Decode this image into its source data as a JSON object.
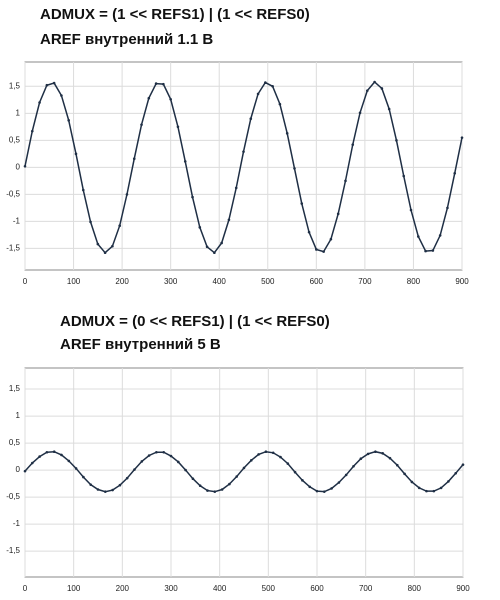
{
  "chart_data": [
    {
      "type": "line",
      "title": "ADMUX =  (1 << REFS1) | (1 << REFS0)",
      "subtitle": "AREF внутренний 1.1 В",
      "x": [
        0,
        15,
        30,
        45,
        60,
        75,
        90,
        105,
        120,
        135,
        150,
        165,
        180,
        195,
        210,
        225,
        240,
        255,
        270,
        285,
        300,
        315,
        330,
        345,
        360,
        375,
        390,
        405,
        420,
        435,
        450,
        465,
        480,
        495,
        510,
        525,
        540,
        555,
        570,
        585,
        600,
        615,
        630,
        645,
        660,
        675,
        690,
        705,
        720,
        735,
        750,
        765,
        780,
        795,
        810,
        825,
        840,
        855,
        870,
        885,
        900
      ],
      "series": [
        {
          "color": "#1f2f45",
          "values": [
            0.02,
            0.67,
            1.2,
            1.52,
            1.56,
            1.33,
            0.87,
            0.25,
            -0.42,
            -1.01,
            -1.42,
            -1.58,
            -1.46,
            -1.08,
            -0.5,
            0.16,
            0.79,
            1.28,
            1.55,
            1.54,
            1.26,
            0.75,
            0.11,
            -0.55,
            -1.11,
            -1.47,
            -1.58,
            -1.4,
            -0.97,
            -0.38,
            0.29,
            0.9,
            1.36,
            1.57,
            1.5,
            1.17,
            0.63,
            -0.02,
            -0.67,
            -1.2,
            -1.52,
            -1.56,
            -1.33,
            -0.86,
            -0.25,
            0.42,
            1.01,
            1.42,
            1.58,
            1.46,
            1.08,
            0.5,
            -0.16,
            -0.79,
            -1.28,
            -1.55,
            -1.54,
            -1.26,
            -0.75,
            -0.11,
            0.55
          ]
        }
      ],
      "xlim": [
        0,
        900
      ],
      "xticks": [
        0,
        100,
        200,
        300,
        400,
        500,
        600,
        700,
        800,
        900
      ],
      "ylim": [
        -1.9,
        1.95
      ],
      "yticks": [
        {
          "value": -1.5,
          "label": "-1,5"
        },
        -1,
        {
          "value": -0.5,
          "label": "-0,5"
        },
        0,
        {
          "value": 0.5,
          "label": "0,5"
        },
        1,
        {
          "value": 1.5,
          "label": "1,5"
        }
      ],
      "grid": true
    },
    {
      "type": "line",
      "title": "ADMUX =  (0 << REFS1) | (1 << REFS0)",
      "subtitle": "AREF внутренний 5 В",
      "x": [
        0,
        15,
        30,
        45,
        60,
        75,
        90,
        105,
        120,
        135,
        150,
        165,
        180,
        195,
        210,
        225,
        240,
        255,
        270,
        285,
        300,
        315,
        330,
        345,
        360,
        375,
        390,
        405,
        420,
        435,
        450,
        465,
        480,
        495,
        510,
        525,
        540,
        555,
        570,
        585,
        600,
        615,
        630,
        645,
        660,
        675,
        690,
        705,
        720,
        735,
        750,
        765,
        780,
        795,
        810,
        825,
        840,
        855,
        870,
        885,
        900
      ],
      "series": [
        {
          "color": "#1f2f45",
          "values": [
            -0.02,
            0.13,
            0.25,
            0.33,
            0.34,
            0.28,
            0.17,
            0.03,
            -0.13,
            -0.27,
            -0.36,
            -0.4,
            -0.37,
            -0.28,
            -0.15,
            0.01,
            0.16,
            0.27,
            0.33,
            0.33,
            0.26,
            0.15,
            0.0,
            -0.16,
            -0.29,
            -0.38,
            -0.4,
            -0.36,
            -0.26,
            -0.12,
            0.04,
            0.18,
            0.29,
            0.34,
            0.32,
            0.24,
            0.12,
            -0.04,
            -0.19,
            -0.31,
            -0.39,
            -0.4,
            -0.34,
            -0.23,
            -0.09,
            0.07,
            0.21,
            0.3,
            0.34,
            0.31,
            0.22,
            0.09,
            -0.07,
            -0.22,
            -0.33,
            -0.39,
            -0.39,
            -0.33,
            -0.21,
            -0.06,
            0.1
          ]
        }
      ],
      "xlim": [
        0,
        900
      ],
      "xticks": [
        0,
        100,
        200,
        300,
        400,
        500,
        600,
        700,
        800,
        900
      ],
      "ylim": [
        -1.98,
        1.89
      ],
      "yticks": [
        {
          "value": -1.5,
          "label": "-1,5"
        },
        -1,
        {
          "value": -0.5,
          "label": "-0,5"
        },
        0,
        {
          "value": 0.5,
          "label": "0,5"
        },
        1,
        {
          "value": 1.5,
          "label": "1,5"
        }
      ],
      "grid": true
    }
  ]
}
